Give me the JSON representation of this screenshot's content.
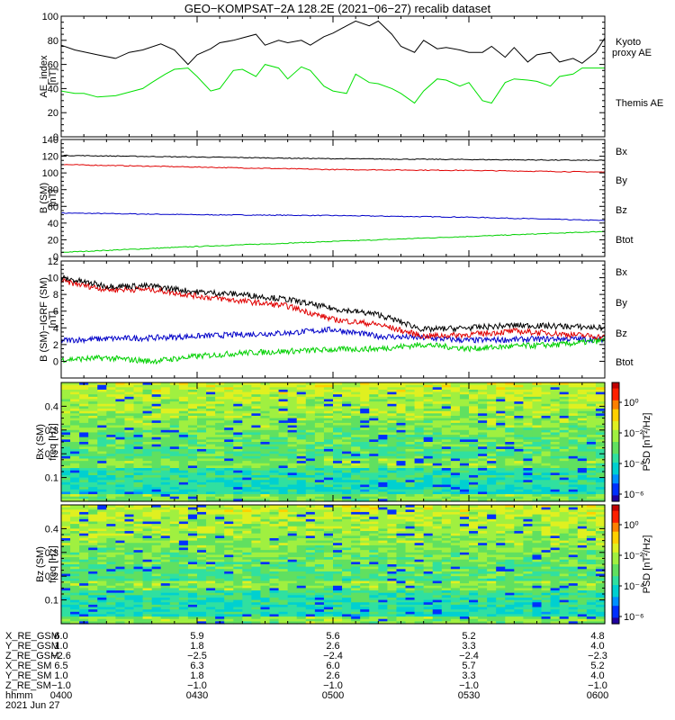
{
  "title": "GEO−KOMPSAT−2A 128.2E (2021−06−27) recalib dataset",
  "colors": {
    "black": "#000000",
    "red": "#e00000",
    "green": "#00d000",
    "blue": "#0000c8",
    "ae_green": "#00e000"
  },
  "chart_data": [
    {
      "type": "line",
      "panel": "ae",
      "ylabel_lines": [
        "AE_index",
        "[nT]"
      ],
      "ylim": [
        0,
        100
      ],
      "yticks": [
        "0",
        "20",
        "40",
        "60",
        "80",
        "100"
      ],
      "yticks_values": [
        0,
        20,
        40,
        60,
        80,
        100
      ],
      "series": [
        {
          "name": "Themis AE",
          "color": "#000000",
          "x": [
            0,
            3,
            8,
            12,
            15,
            18,
            22,
            25,
            28,
            30,
            33,
            35,
            38,
            40,
            43,
            45,
            48,
            50,
            53,
            55,
            58,
            60,
            63,
            65,
            68,
            70,
            73,
            75,
            78,
            80,
            83,
            85,
            88,
            90,
            93,
            95,
            98,
            100,
            103,
            105,
            108,
            110,
            113,
            115,
            118,
            120
          ],
          "y": [
            76,
            72,
            68,
            65,
            70,
            72,
            77,
            72,
            60,
            68,
            73,
            78,
            80,
            82,
            85,
            76,
            80,
            78,
            80,
            76,
            83,
            86,
            92,
            96,
            92,
            96,
            85,
            75,
            70,
            80,
            73,
            74,
            72,
            70,
            70,
            75,
            66,
            74,
            62,
            68,
            70,
            62,
            65,
            61,
            70,
            82
          ]
        },
        {
          "name": "Kyoto proxy AE",
          "color": "#00e000",
          "x": [
            0,
            3,
            5,
            8,
            12,
            15,
            18,
            20,
            23,
            25,
            28,
            30,
            33,
            35,
            38,
            40,
            43,
            45,
            48,
            50,
            53,
            55,
            58,
            60,
            63,
            65,
            68,
            70,
            73,
            75,
            78,
            80,
            83,
            85,
            88,
            90,
            93,
            95,
            98,
            100,
            103,
            105,
            108,
            110,
            113,
            115,
            118,
            120
          ],
          "y": [
            38,
            36,
            36,
            33,
            34,
            37,
            40,
            45,
            52,
            56,
            57,
            50,
            38,
            40,
            55,
            56,
            50,
            60,
            57,
            48,
            58,
            55,
            42,
            38,
            36,
            52,
            45,
            44,
            40,
            36,
            28,
            38,
            48,
            47,
            42,
            45,
            30,
            28,
            45,
            48,
            47,
            46,
            42,
            50,
            52,
            57,
            57,
            57
          ]
        }
      ]
    },
    {
      "type": "line",
      "panel": "bsm",
      "ylabel_lines": [
        "B (SM)",
        "[nT]"
      ],
      "ylim": [
        0,
        140
      ],
      "yticks": [
        "0",
        "20",
        "40",
        "60",
        "80",
        "100",
        "120",
        "140"
      ],
      "yticks_values": [
        0,
        20,
        40,
        60,
        80,
        100,
        120,
        140
      ],
      "series": [
        {
          "name": "Bx",
          "color": "#0000c8",
          "x": [
            0,
            30,
            60,
            90,
            120
          ],
          "y": [
            52,
            50,
            49,
            47,
            43
          ]
        },
        {
          "name": "By",
          "color": "#00d000",
          "x": [
            0,
            30,
            60,
            90,
            120
          ],
          "y": [
            5,
            12,
            18,
            24,
            30
          ]
        },
        {
          "name": "Bz",
          "color": "#e00000",
          "x": [
            0,
            30,
            60,
            90,
            120
          ],
          "y": [
            110,
            107,
            104,
            103,
            101
          ]
        },
        {
          "name": "Btot",
          "color": "#000000",
          "x": [
            0,
            30,
            60,
            90,
            120
          ],
          "y": [
            121,
            119,
            117,
            116,
            115
          ]
        }
      ]
    },
    {
      "type": "line",
      "panel": "bigrf",
      "ylabel_lines": [
        "B (SM)−IGRF (SM)",
        "[nT]"
      ],
      "ylim": [
        -2,
        12
      ],
      "yticks": [
        "0",
        "2",
        "4",
        "6",
        "8",
        "10",
        "12"
      ],
      "yticks_values": [
        0,
        2,
        4,
        6,
        8,
        10,
        12
      ],
      "series": [
        {
          "name": "Bx",
          "color": "#0000c8",
          "x": [
            0,
            10,
            20,
            30,
            40,
            50,
            60,
            70,
            80,
            90,
            100,
            110,
            120
          ],
          "y": [
            2.5,
            2.7,
            2.8,
            3.0,
            3.2,
            3.4,
            3.8,
            3.0,
            2.8,
            2.5,
            2.6,
            2.7,
            2.6
          ]
        },
        {
          "name": "By",
          "color": "#00d000",
          "x": [
            0,
            10,
            20,
            30,
            40,
            50,
            60,
            70,
            80,
            90,
            100,
            110,
            120
          ],
          "y": [
            0.2,
            0.4,
            0.0,
            0.6,
            1.0,
            1.2,
            1.4,
            1.5,
            2.0,
            1.5,
            1.8,
            2.0,
            2.5
          ]
        },
        {
          "name": "Bz",
          "color": "#e00000",
          "x": [
            0,
            10,
            20,
            30,
            40,
            50,
            60,
            70,
            80,
            90,
            100,
            110,
            120
          ],
          "y": [
            9.6,
            8.6,
            8.6,
            7.8,
            7.2,
            6.6,
            5.0,
            4.4,
            3.0,
            3.2,
            3.6,
            3.3,
            2.9
          ]
        },
        {
          "name": "Btot",
          "color": "#000000",
          "x": [
            0,
            10,
            20,
            30,
            40,
            50,
            60,
            70,
            80,
            90,
            100,
            110,
            120
          ],
          "y": [
            10.0,
            9.0,
            9.0,
            8.3,
            8.0,
            7.4,
            6.3,
            5.6,
            3.8,
            4.0,
            4.3,
            4.2,
            4.0
          ]
        }
      ]
    },
    {
      "type": "heatmap",
      "panel": "spec_bx",
      "ylabel_lines": [
        "Bx (SM)",
        "freq [Hz]"
      ],
      "ylim": [
        0,
        0.5
      ],
      "yticks": [
        "0.1",
        "0.2",
        "0.3",
        "0.4"
      ],
      "yticks_values": [
        0.1,
        0.2,
        0.3,
        0.4
      ],
      "colorbar": {
        "label": "PSD [nT²/Hz]",
        "ticks": [
          "10⁰",
          "10⁻²",
          "10⁻⁴",
          "10⁻⁶"
        ]
      }
    },
    {
      "type": "heatmap",
      "panel": "spec_bz",
      "ylabel_lines": [
        "Bz (SM)",
        "freq [Hz]"
      ],
      "ylim": [
        0,
        0.5
      ],
      "yticks": [
        "0.1",
        "0.2",
        "0.3",
        "0.4"
      ],
      "yticks_values": [
        0.1,
        0.2,
        0.3,
        0.4
      ],
      "colorbar": {
        "label": "PSD [nT²/Hz]",
        "ticks": [
          "10⁰",
          "10⁻²",
          "10⁻⁴",
          "10⁻⁶"
        ]
      }
    }
  ],
  "legend_ae": {
    "kyoto": "Kyoto",
    "proxy": "proxy AE",
    "themis": "Themis AE"
  },
  "legend_b": [
    "Bx",
    "By",
    "Bz",
    "Btot"
  ],
  "ephemeris": {
    "labels": [
      "X_RE_GSM",
      "Y_RE_GSM",
      "Z_RE_GSM",
      "X_RE_SM",
      "Y_RE_SM",
      "Z_RE_SM",
      "hhmm"
    ],
    "columns": [
      [
        "6.0",
        "1.0",
        "−2.6",
        "6.5",
        "1.0",
        "−1.0",
        "0400"
      ],
      [
        "5.9",
        "1.8",
        "−2.5",
        "6.3",
        "1.8",
        "−1.0",
        "0430"
      ],
      [
        "5.6",
        "2.6",
        "−2.4",
        "6.0",
        "2.6",
        "−1.0",
        "0500"
      ],
      [
        "5.2",
        "3.3",
        "−2.4",
        "5.7",
        "3.3",
        "−1.0",
        "0530"
      ],
      [
        "4.8",
        "4.0",
        "−2.3",
        "5.2",
        "4.0",
        "−1.0",
        "0600"
      ]
    ],
    "date": "2021 Jun 27"
  }
}
